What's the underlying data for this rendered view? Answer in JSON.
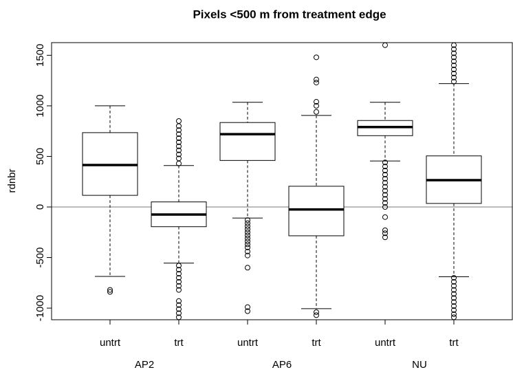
{
  "chart_data": {
    "type": "box",
    "title": "Pixels <500 m from treatment edge",
    "y_label": "rdnbr",
    "ylim": [
      -1115,
      1625
    ],
    "yticks": [
      -1000,
      -500,
      0,
      500,
      1000,
      1500
    ],
    "reference_line": 0,
    "reference_color": "#bbbbbb",
    "groups": [
      {
        "name": "AP2",
        "boxes": [
          {
            "label": "untrt",
            "low": -687,
            "q1": 115,
            "median": 415,
            "q3": 735,
            "high": 1000,
            "outliers": [
              -820,
              -840
            ]
          },
          {
            "label": "trt",
            "low": -555,
            "q1": -195,
            "median": -75,
            "q3": 50,
            "high": 410,
            "outliers": [
              430,
              480,
              520,
              560,
              600,
              640,
              680,
              720,
              760,
              800,
              850,
              -580,
              -620,
              -660,
              -700,
              -740,
              -780,
              -820,
              -930,
              -970,
              -1010,
              -1050,
              -1090
            ]
          }
        ]
      },
      {
        "name": "AP6",
        "boxes": [
          {
            "label": "untrt",
            "low": -110,
            "q1": 460,
            "median": 720,
            "q3": 835,
            "high": 1035,
            "outliers": [
              -130,
              -160,
              -190,
              -220,
              -250,
              -280,
              -310,
              -340,
              -370,
              -400,
              -440,
              -480,
              -600,
              -990,
              -1030
            ]
          },
          {
            "label": "trt",
            "low": -1005,
            "q1": -285,
            "median": -25,
            "q3": 205,
            "high": 905,
            "outliers": [
              940,
              1000,
              1040,
              1230,
              1260,
              1480,
              -1040,
              -1070
            ]
          }
        ]
      },
      {
        "name": "NU",
        "boxes": [
          {
            "label": "untrt",
            "low": 455,
            "q1": 705,
            "median": 790,
            "q3": 855,
            "high": 1035,
            "outliers": [
              1600,
              440,
              400,
              360,
              320,
              280,
              240,
              200,
              160,
              120,
              80,
              40,
              0,
              -100,
              -230,
              -260,
              -300
            ]
          },
          {
            "label": "trt",
            "low": -690,
            "q1": 35,
            "median": 265,
            "q3": 505,
            "high": 1220,
            "outliers": [
              1240,
              1280,
              1320,
              1360,
              1400,
              1440,
              1480,
              1520,
              1560,
              1600,
              -700,
              -740,
              -780,
              -820,
              -860,
              -900,
              -940,
              -980,
              -1020,
              -1060,
              -1090
            ]
          }
        ]
      }
    ]
  }
}
